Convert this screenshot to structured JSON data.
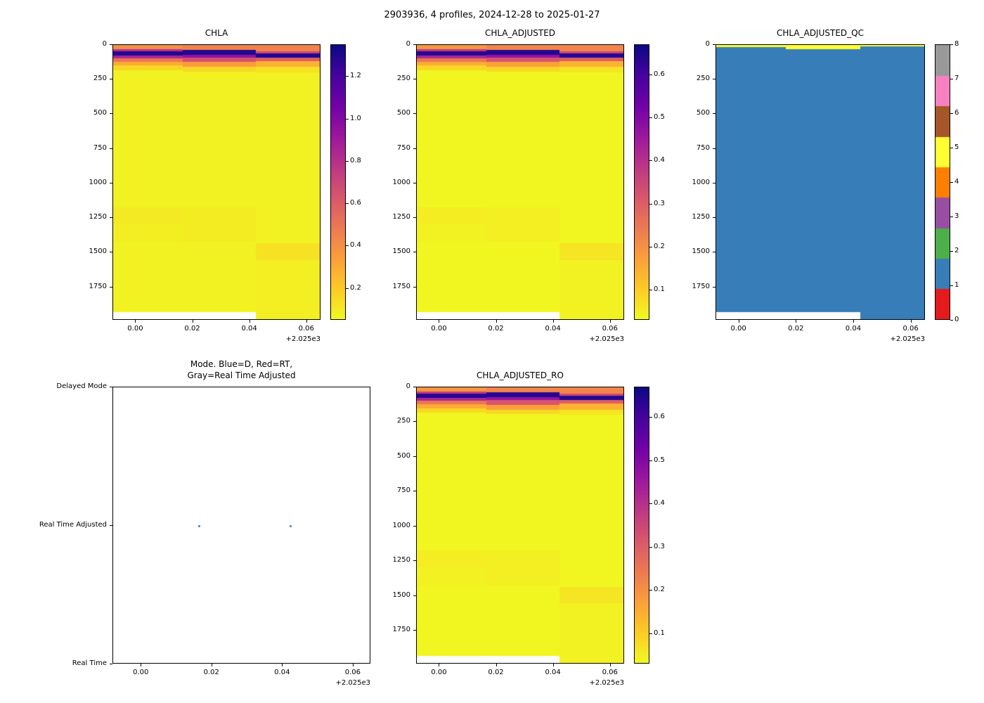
{
  "figure": {
    "title": "2903936, 4 profiles, 2024-12-28 to 2025-01-27",
    "background": "#ffffff",
    "no_data_color": "#ffffff"
  },
  "chart_data": [
    {
      "type": "heatmap",
      "title": "CHLA",
      "x_offset_label": "+2.025e3",
      "x_range": [
        -0.008,
        0.065
      ],
      "x_ticks": [
        0.0,
        0.02,
        0.04,
        0.06
      ],
      "x_tick_labels": [
        "0.00",
        "0.02",
        "0.04",
        "0.06"
      ],
      "y_label": "",
      "y_range": [
        0,
        1990
      ],
      "y_ticks": [
        0,
        250,
        500,
        750,
        1000,
        1250,
        1500,
        1750
      ],
      "colorbar": {
        "kind": "continuous",
        "cmap": "plasma_r",
        "vmin": 0.05,
        "vmax": 1.35,
        "ticks": [
          0.2,
          0.4,
          0.6,
          0.8,
          1.0,
          1.2
        ],
        "tick_labels": [
          "0.2",
          "0.4",
          "0.6",
          "0.8",
          "1.0",
          "1.2"
        ]
      },
      "column_edges": [
        -0.008,
        0.0165,
        0.0425,
        0.054,
        0.065
      ],
      "columns": [
        {
          "segments": [
            [
              0,
              30,
              0.4
            ],
            [
              30,
              45,
              0.8
            ],
            [
              45,
              75,
              1.3
            ],
            [
              75,
              95,
              0.85
            ],
            [
              95,
              120,
              0.5
            ],
            [
              120,
              150,
              0.3
            ],
            [
              150,
              185,
              0.15
            ],
            [
              185,
              1180,
              0.07
            ],
            [
              1180,
              1300,
              0.095
            ],
            [
              1300,
              1430,
              0.085
            ],
            [
              1430,
              1940,
              0.07
            ]
          ]
        },
        {
          "segments": [
            [
              0,
              35,
              0.45
            ],
            [
              35,
              70,
              1.3
            ],
            [
              70,
              90,
              0.95
            ],
            [
              90,
              125,
              0.65
            ],
            [
              125,
              160,
              0.35
            ],
            [
              160,
              195,
              0.15
            ],
            [
              195,
              1180,
              0.07
            ],
            [
              1180,
              1430,
              0.09
            ],
            [
              1430,
              1940,
              0.07
            ]
          ]
        },
        {
          "segments": [
            [
              0,
              45,
              0.45
            ],
            [
              45,
              60,
              0.7
            ],
            [
              60,
              90,
              1.3
            ],
            [
              90,
              115,
              0.6
            ],
            [
              115,
              160,
              0.28
            ],
            [
              160,
              200,
              0.12
            ],
            [
              200,
              1440,
              0.07
            ],
            [
              1440,
              1560,
              0.12
            ],
            [
              1560,
              1990,
              0.08
            ]
          ]
        },
        {
          "segments": [
            [
              0,
              45,
              0.45
            ],
            [
              45,
              60,
              0.7
            ],
            [
              60,
              90,
              1.3
            ],
            [
              90,
              115,
              0.6
            ],
            [
              115,
              160,
              0.28
            ],
            [
              160,
              200,
              0.12
            ],
            [
              200,
              1440,
              0.07
            ],
            [
              1440,
              1560,
              0.12
            ],
            [
              1560,
              1990,
              0.08
            ]
          ]
        }
      ]
    },
    {
      "type": "heatmap",
      "title": "CHLA_ADJUSTED",
      "x_offset_label": "+2.025e3",
      "x_range": [
        -0.008,
        0.065
      ],
      "x_ticks": [
        0.0,
        0.02,
        0.04,
        0.06
      ],
      "x_tick_labels": [
        "0.00",
        "0.02",
        "0.04",
        "0.06"
      ],
      "y_range": [
        0,
        1990
      ],
      "y_ticks": [
        0,
        250,
        500,
        750,
        1000,
        1250,
        1500,
        1750
      ],
      "colorbar": {
        "kind": "continuous",
        "cmap": "plasma_r",
        "vmin": 0.03,
        "vmax": 0.67,
        "ticks": [
          0.1,
          0.2,
          0.3,
          0.4,
          0.5,
          0.6
        ],
        "tick_labels": [
          "0.1",
          "0.2",
          "0.3",
          "0.4",
          "0.5",
          "0.6"
        ]
      },
      "column_edges": [
        -0.008,
        0.0165,
        0.0425,
        0.054,
        0.065
      ],
      "columns": [
        {
          "segments": [
            [
              0,
              30,
              0.19
            ],
            [
              30,
              45,
              0.38
            ],
            [
              45,
              75,
              0.64
            ],
            [
              75,
              95,
              0.42
            ],
            [
              95,
              120,
              0.25
            ],
            [
              120,
              150,
              0.15
            ],
            [
              150,
              185,
              0.08
            ],
            [
              185,
              1180,
              0.035
            ],
            [
              1180,
              1300,
              0.048
            ],
            [
              1300,
              1430,
              0.042
            ],
            [
              1430,
              1940,
              0.035
            ]
          ]
        },
        {
          "segments": [
            [
              0,
              35,
              0.22
            ],
            [
              35,
              70,
              0.64
            ],
            [
              70,
              90,
              0.47
            ],
            [
              90,
              125,
              0.32
            ],
            [
              125,
              160,
              0.17
            ],
            [
              160,
              195,
              0.08
            ],
            [
              195,
              1180,
              0.035
            ],
            [
              1180,
              1430,
              0.045
            ],
            [
              1430,
              1940,
              0.035
            ]
          ]
        },
        {
          "segments": [
            [
              0,
              45,
              0.22
            ],
            [
              45,
              60,
              0.35
            ],
            [
              60,
              90,
              0.64
            ],
            [
              90,
              115,
              0.3
            ],
            [
              115,
              160,
              0.14
            ],
            [
              160,
              200,
              0.06
            ],
            [
              200,
              1440,
              0.035
            ],
            [
              1440,
              1560,
              0.06
            ],
            [
              1560,
              1990,
              0.04
            ]
          ]
        },
        {
          "segments": [
            [
              0,
              45,
              0.22
            ],
            [
              45,
              60,
              0.35
            ],
            [
              60,
              90,
              0.64
            ],
            [
              90,
              115,
              0.3
            ],
            [
              115,
              160,
              0.14
            ],
            [
              160,
              200,
              0.06
            ],
            [
              200,
              1440,
              0.035
            ],
            [
              1440,
              1560,
              0.06
            ],
            [
              1560,
              1990,
              0.04
            ]
          ]
        }
      ]
    },
    {
      "type": "heatmap_discrete",
      "title": "CHLA_ADJUSTED_QC",
      "x_offset_label": "+2.025e3",
      "x_range": [
        -0.008,
        0.065
      ],
      "x_ticks": [
        0.0,
        0.02,
        0.04,
        0.06
      ],
      "x_tick_labels": [
        "0.00",
        "0.02",
        "0.04",
        "0.06"
      ],
      "y_range": [
        0,
        1990
      ],
      "y_ticks": [
        0,
        250,
        500,
        750,
        1000,
        1250,
        1500,
        1750
      ],
      "palette": [
        "#e41a1c",
        "#377eb8",
        "#4daf4a",
        "#984ea3",
        "#ff7f00",
        "#ffff33",
        "#a65628",
        "#f781bf",
        "#999999"
      ],
      "colorbar": {
        "kind": "discrete",
        "values": [
          0,
          1,
          2,
          3,
          4,
          5,
          6,
          7,
          8
        ],
        "tick_labels": [
          "0",
          "1",
          "2",
          "3",
          "4",
          "5",
          "6",
          "7",
          "8"
        ],
        "colors": [
          "#e41a1c",
          "#377eb8",
          "#4daf4a",
          "#984ea3",
          "#ff7f00",
          "#ffff33",
          "#a65628",
          "#f781bf",
          "#999999"
        ]
      },
      "column_edges": [
        -0.008,
        0.0165,
        0.0425,
        0.054,
        0.065
      ],
      "columns": [
        {
          "segments": [
            [
              0,
              14,
              5
            ],
            [
              14,
              1940,
              1
            ]
          ]
        },
        {
          "segments": [
            [
              0,
              32,
              5
            ],
            [
              32,
              1940,
              1
            ]
          ]
        },
        {
          "segments": [
            [
              0,
              12,
              5
            ],
            [
              12,
              1990,
              1
            ]
          ]
        },
        {
          "segments": [
            [
              0,
              12,
              5
            ],
            [
              12,
              1990,
              1
            ]
          ]
        }
      ]
    },
    {
      "type": "scatter",
      "title": "Mode. Blue=D, Red=RT,\nGray=Real Time Adjusted",
      "x_offset_label": "+2.025e3",
      "x_range": [
        -0.008,
        0.065
      ],
      "x_ticks": [
        0.0,
        0.02,
        0.04,
        0.06
      ],
      "x_tick_labels": [
        "0.00",
        "0.02",
        "0.04",
        "0.06"
      ],
      "y_categories": [
        "Delayed Mode",
        "Real Time Adjusted",
        "Real Time"
      ],
      "legend_colors": {
        "delayed_mode": "#0000ff",
        "real_time": "#ff0000",
        "real_time_adjusted": "#808080"
      },
      "point_color": "#4d7da8",
      "point_size": 3,
      "points": [
        {
          "x": 0.0165,
          "category": "Real Time Adjusted"
        },
        {
          "x": 0.0425,
          "category": "Real Time Adjusted"
        }
      ]
    },
    {
      "type": "heatmap",
      "title": "CHLA_ADJUSTED_RO",
      "x_offset_label": "+2.025e3",
      "x_range": [
        -0.008,
        0.065
      ],
      "x_ticks": [
        0.0,
        0.02,
        0.04,
        0.06
      ],
      "x_tick_labels": [
        "0.00",
        "0.02",
        "0.04",
        "0.06"
      ],
      "y_range": [
        0,
        1990
      ],
      "y_ticks": [
        0,
        250,
        500,
        750,
        1000,
        1250,
        1500,
        1750
      ],
      "colorbar": {
        "kind": "continuous",
        "cmap": "plasma_r",
        "vmin": 0.03,
        "vmax": 0.67,
        "ticks": [
          0.1,
          0.2,
          0.3,
          0.4,
          0.5,
          0.6
        ],
        "tick_labels": [
          "0.1",
          "0.2",
          "0.3",
          "0.4",
          "0.5",
          "0.6"
        ]
      },
      "column_edges": [
        -0.008,
        0.0165,
        0.0425,
        0.054,
        0.065
      ],
      "columns": [
        {
          "segments": [
            [
              0,
              30,
              0.19
            ],
            [
              30,
              45,
              0.38
            ],
            [
              45,
              75,
              0.64
            ],
            [
              75,
              95,
              0.42
            ],
            [
              95,
              120,
              0.25
            ],
            [
              120,
              150,
              0.15
            ],
            [
              150,
              185,
              0.08
            ],
            [
              185,
              1180,
              0.035
            ],
            [
              1180,
              1300,
              0.048
            ],
            [
              1300,
              1430,
              0.042
            ],
            [
              1430,
              1940,
              0.035
            ]
          ]
        },
        {
          "segments": [
            [
              0,
              35,
              0.22
            ],
            [
              35,
              70,
              0.64
            ],
            [
              70,
              90,
              0.47
            ],
            [
              90,
              125,
              0.32
            ],
            [
              125,
              160,
              0.17
            ],
            [
              160,
              195,
              0.08
            ],
            [
              195,
              1180,
              0.035
            ],
            [
              1180,
              1430,
              0.045
            ],
            [
              1430,
              1940,
              0.035
            ]
          ]
        },
        {
          "segments": [
            [
              0,
              45,
              0.22
            ],
            [
              45,
              60,
              0.35
            ],
            [
              60,
              90,
              0.64
            ],
            [
              90,
              115,
              0.3
            ],
            [
              115,
              160,
              0.14
            ],
            [
              160,
              200,
              0.06
            ],
            [
              200,
              1440,
              0.035
            ],
            [
              1440,
              1560,
              0.06
            ],
            [
              1560,
              1990,
              0.04
            ]
          ]
        },
        {
          "segments": [
            [
              0,
              45,
              0.22
            ],
            [
              45,
              60,
              0.35
            ],
            [
              60,
              90,
              0.64
            ],
            [
              90,
              115,
              0.3
            ],
            [
              115,
              160,
              0.14
            ],
            [
              160,
              200,
              0.06
            ],
            [
              200,
              1440,
              0.035
            ],
            [
              1440,
              1560,
              0.06
            ],
            [
              1560,
              1990,
              0.04
            ]
          ]
        }
      ]
    }
  ]
}
